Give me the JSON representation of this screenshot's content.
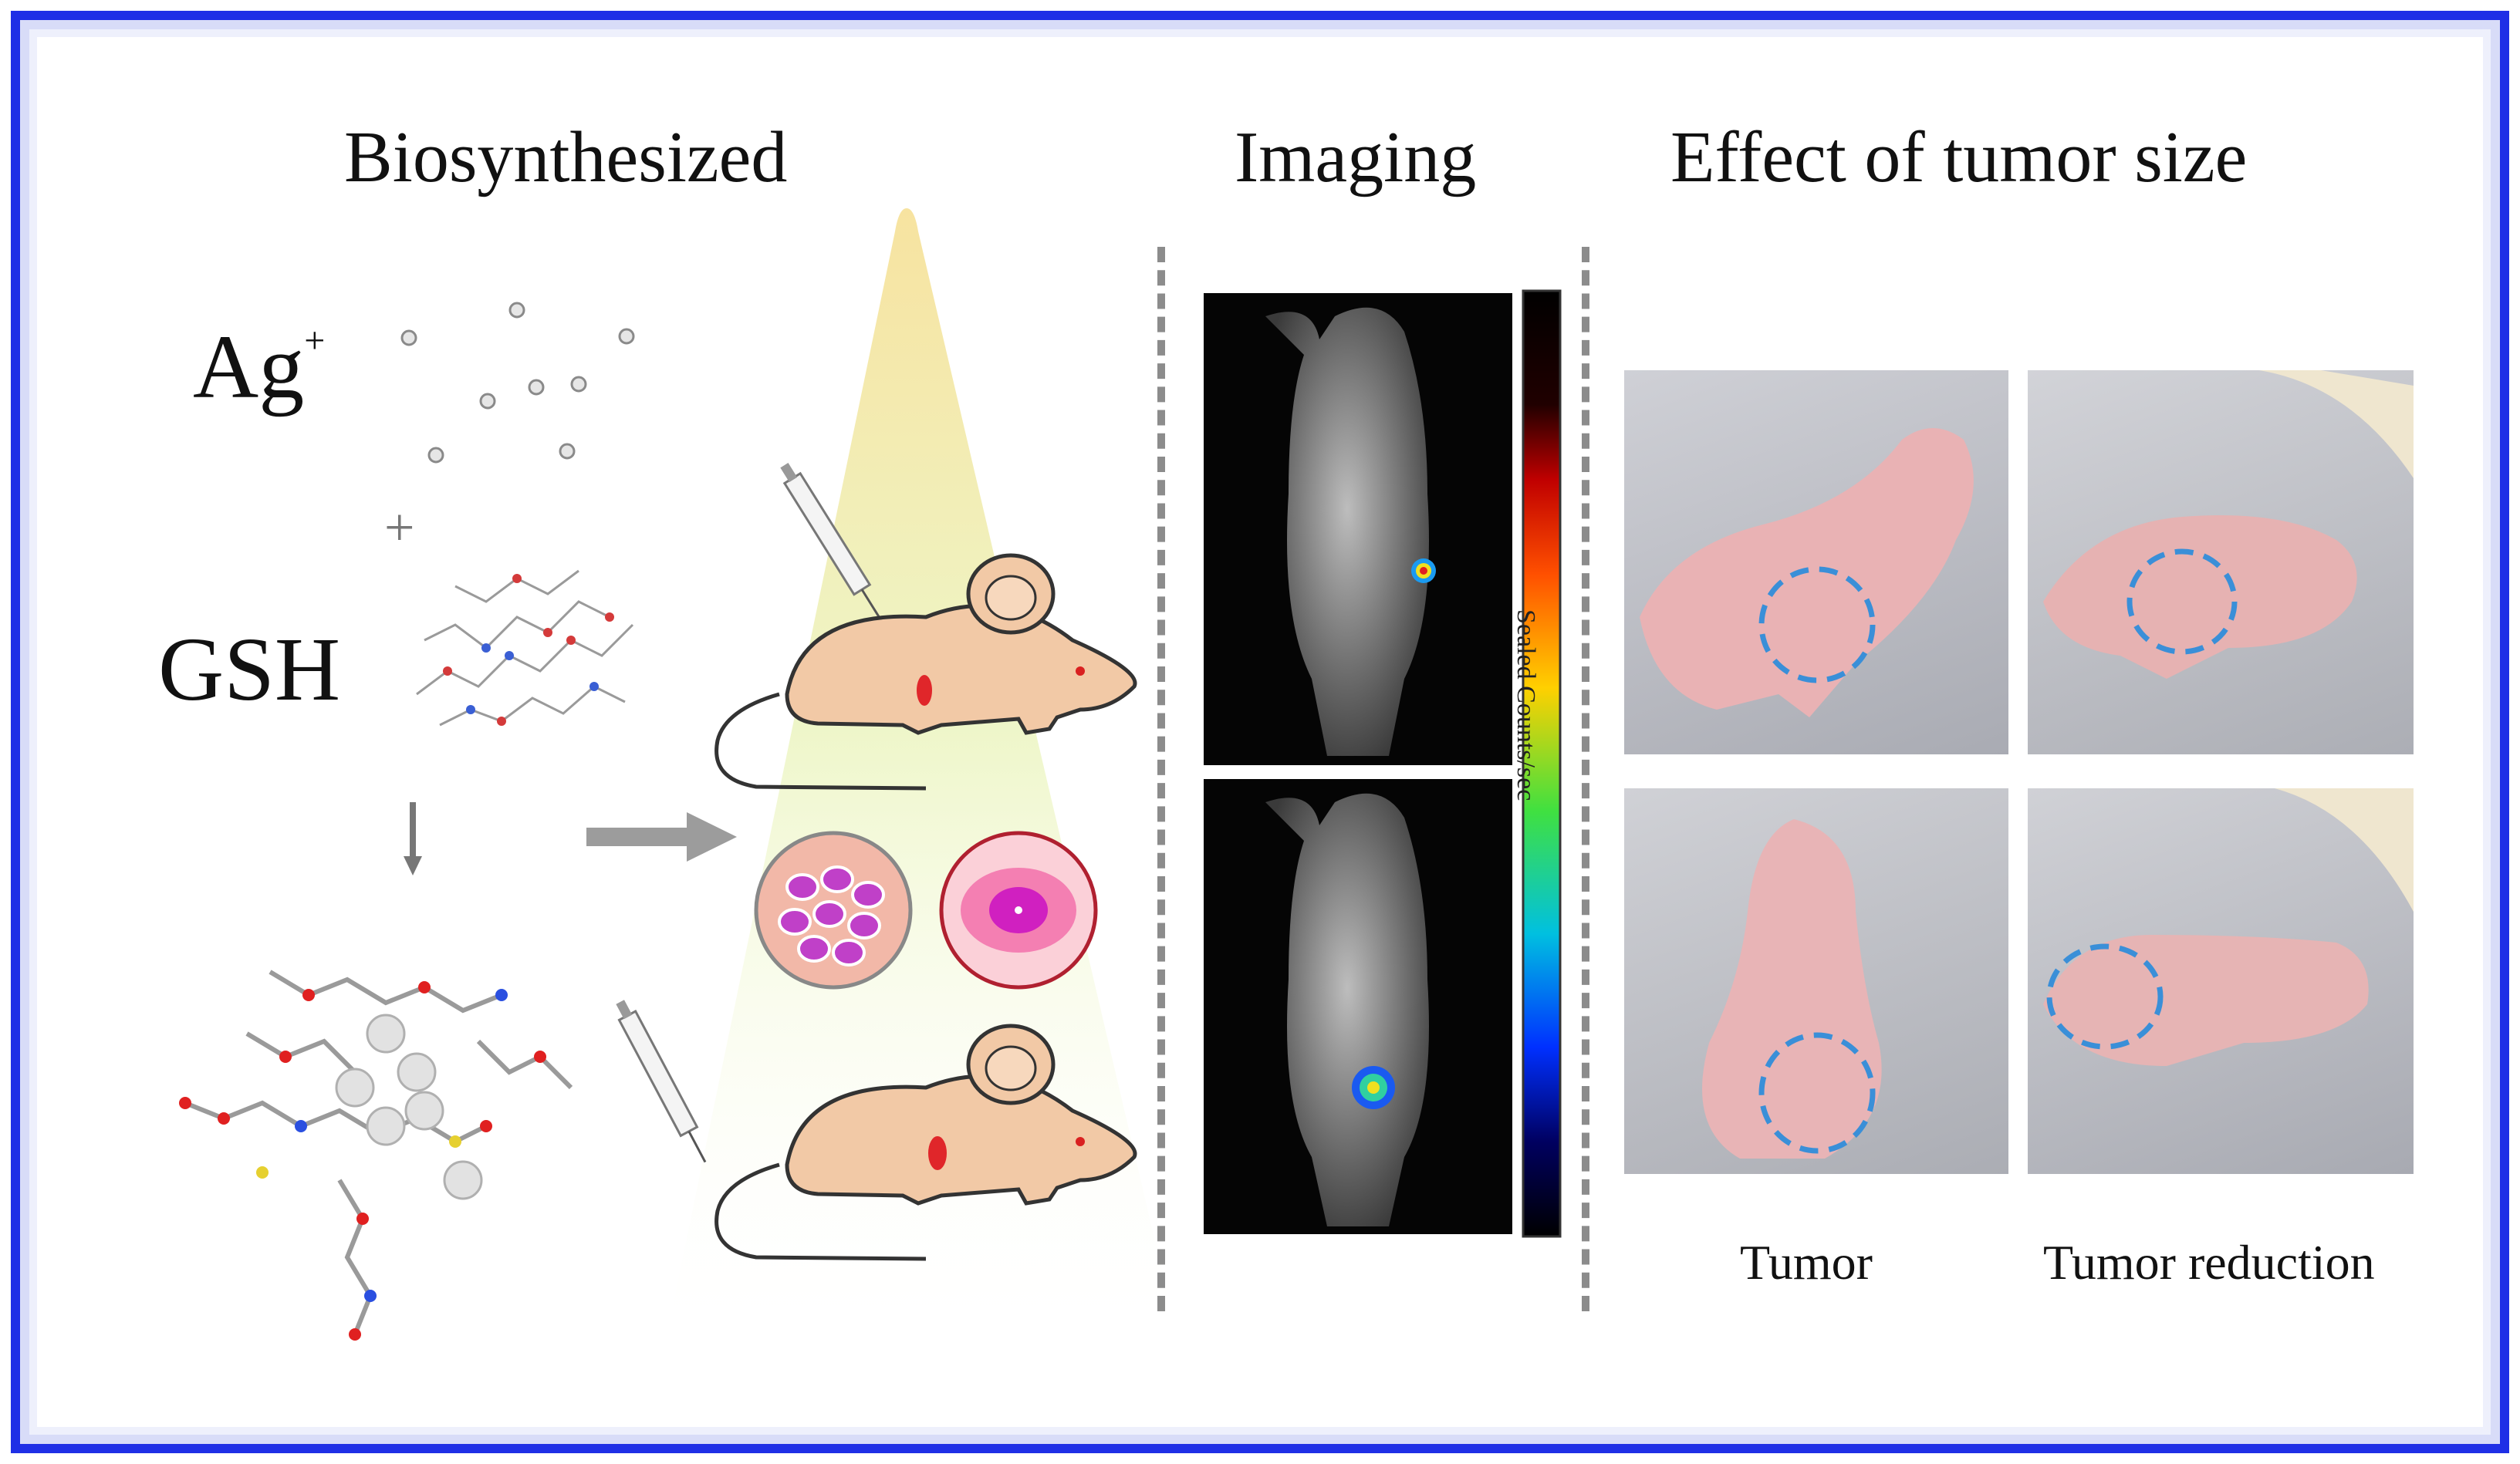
{
  "sections": {
    "biosynthesized": "Biosynthesized",
    "imaging": "Imaging",
    "effect": "Effect of tumor size"
  },
  "labels": {
    "ag": "Ag",
    "ag_charge": "+",
    "plus": "+",
    "gsh": "GSH",
    "colorbar": "Sealed Counts/sec"
  },
  "captions": {
    "tumor": "Tumor",
    "reduction": "Tumor reduction"
  },
  "colors": {
    "frame": "#1f2fe6",
    "mouse": "#f2c9a6",
    "tumor_mark": "#e0262a",
    "dashed_circle": "#3a8fd8"
  }
}
